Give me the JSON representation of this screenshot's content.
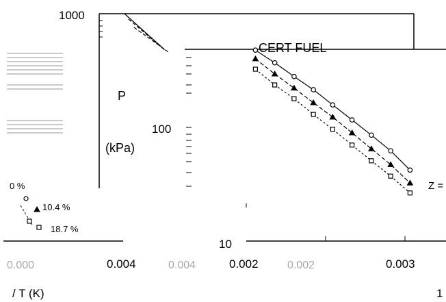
{
  "chart_data": {
    "type": "scatter",
    "title": "CERT FUEL",
    "y_tick_labels": [
      "1000",
      "100",
      "10"
    ],
    "ylabel_parts": [
      "P",
      "(kPa)"
    ],
    "xlabel": "/ T (K)",
    "x_tick_labels_main": [
      "0.002",
      "0.003"
    ],
    "x_tick_labels_overlay": [
      "0.004"
    ],
    "x_tick_labels_faded": [
      "0.000",
      "0.004",
      "0.002"
    ],
    "legend_title_fragment": "Z =",
    "legend_entries": [
      "0 %",
      "10.4 %",
      "18.7 %"
    ],
    "edge_labels": [
      "1"
    ],
    "ylim": [
      10,
      1000
    ],
    "y_scale": "log",
    "xlim": [
      0.0015,
      0.0035
    ],
    "series": [
      {
        "name": "0 %",
        "marker": "circle",
        "x": [
          0.00222,
          0.00232,
          0.00242,
          0.00252,
          0.00262,
          0.00272,
          0.00282,
          0.00292,
          0.00302
        ],
        "y": [
          340,
          270,
          210,
          165,
          125,
          95,
          72,
          54,
          38
        ]
      },
      {
        "name": "10.4 %",
        "marker": "triangle",
        "x": [
          0.00222,
          0.00232,
          0.00242,
          0.00252,
          0.00262,
          0.00272,
          0.00282,
          0.00292,
          0.00302
        ],
        "y": [
          290,
          220,
          170,
          130,
          100,
          75,
          56,
          42,
          30
        ]
      },
      {
        "name": "18.7 %",
        "marker": "square",
        "x": [
          0.00222,
          0.00232,
          0.00242,
          0.00252,
          0.00262,
          0.00272,
          0.00282,
          0.00292,
          0.00302
        ],
        "y": [
          240,
          180,
          140,
          105,
          80,
          60,
          45,
          34,
          25
        ]
      }
    ]
  }
}
